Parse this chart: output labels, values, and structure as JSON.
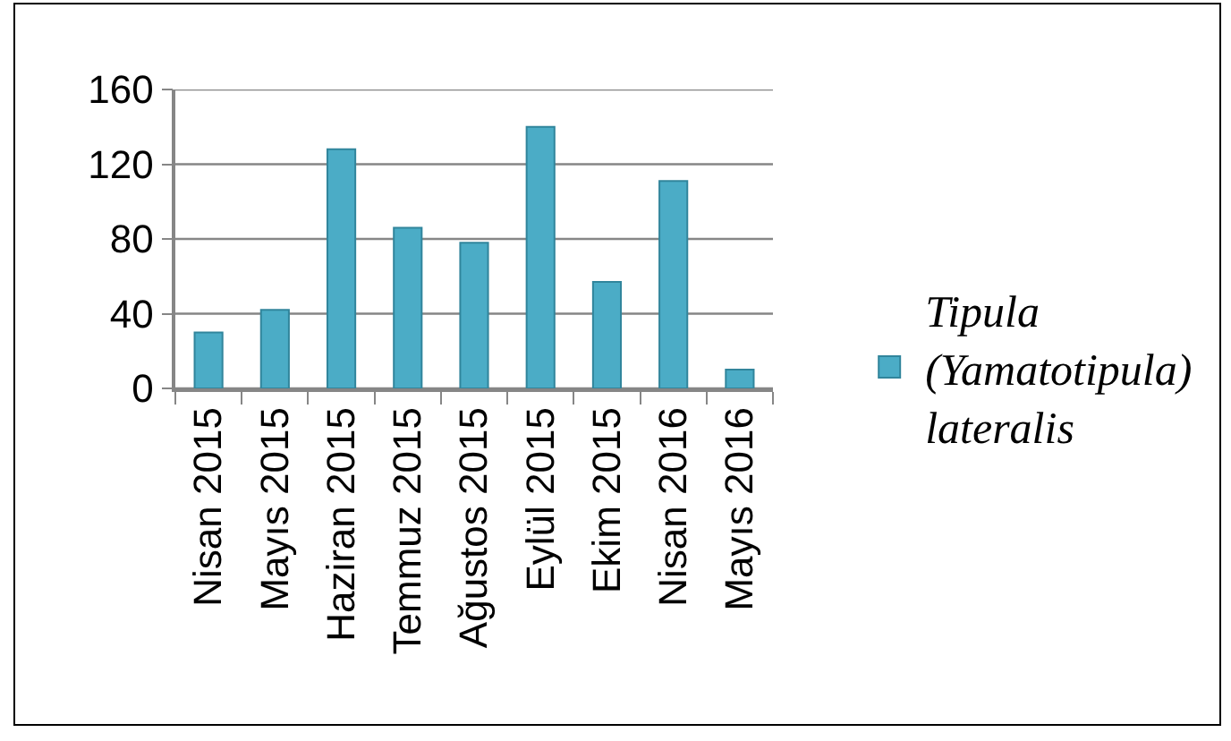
{
  "chart_data": {
    "type": "bar",
    "categories": [
      "Nisan 2015",
      "Mayıs 2015",
      "Haziran 2015",
      "Temmuz 2015",
      "Ağustos 2015",
      "Eylül 2015",
      "Ekim 2015",
      "Nisan 2016",
      "Mayıs 2016"
    ],
    "series": [
      {
        "name": "Tipula (Yamatotipula) lateralis",
        "color": "#4bacc6",
        "values": [
          30,
          42,
          128,
          86,
          78,
          140,
          57,
          111,
          10
        ]
      }
    ],
    "ylim": [
      0,
      160
    ],
    "yticks": [
      0,
      40,
      80,
      120,
      160
    ],
    "grid": "y",
    "legend": "right"
  }
}
